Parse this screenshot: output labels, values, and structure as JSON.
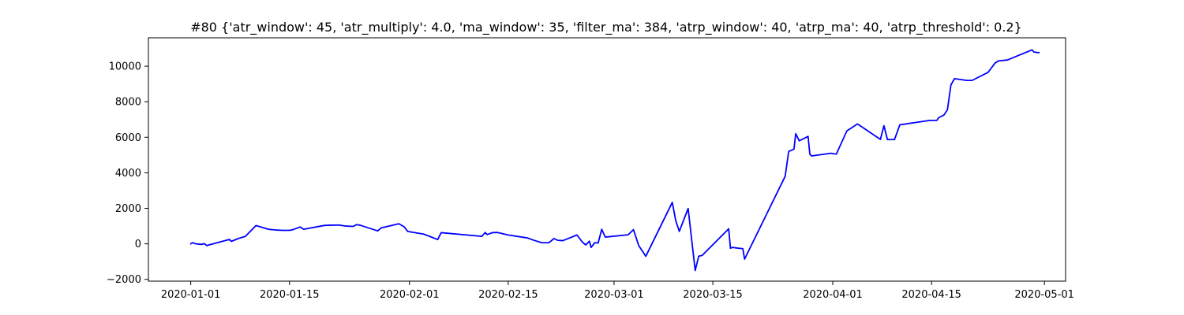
{
  "chart_data": {
    "type": "line",
    "title": "#80 {'atr_window': 45, 'atr_multiply': 4.0, 'ma_window': 35, 'filter_ma': 384, 'atrp_window': 40, 'atrp_ma': 40, 'atrp_threshold': 0.2}",
    "xlabel": "",
    "ylabel": "",
    "xlim": [
      "2019-12-26",
      "2020-05-04"
    ],
    "ylim": [
      -2100,
      11600
    ],
    "grid": false,
    "line_color": "#0000ff",
    "x_ticks": [
      {
        "date": "2020-01-01",
        "label": "2020-01-01"
      },
      {
        "date": "2020-01-15",
        "label": "2020-01-15"
      },
      {
        "date": "2020-02-01",
        "label": "2020-02-01"
      },
      {
        "date": "2020-02-15",
        "label": "2020-02-15"
      },
      {
        "date": "2020-03-01",
        "label": "2020-03-01"
      },
      {
        "date": "2020-03-15",
        "label": "2020-03-15"
      },
      {
        "date": "2020-04-01",
        "label": "2020-04-01"
      },
      {
        "date": "2020-04-15",
        "label": "2020-04-15"
      },
      {
        "date": "2020-05-01",
        "label": "2020-05-01"
      }
    ],
    "y_ticks": [
      {
        "value": -2000,
        "label": "−2000"
      },
      {
        "value": 0,
        "label": "0"
      },
      {
        "value": 2000,
        "label": "2000"
      },
      {
        "value": 4000,
        "label": "4000"
      },
      {
        "value": 6000,
        "label": "6000"
      },
      {
        "value": 8000,
        "label": "8000"
      },
      {
        "value": 10000,
        "label": "10000"
      }
    ],
    "series": [
      {
        "x": [
          "2020-01-01 00:00",
          "2020-01-01 06:00",
          "2020-01-01 18:00",
          "2020-01-02 12:00",
          "2020-01-02 23:00",
          "2020-01-03 06:00",
          "2020-01-03 14:00",
          "2020-01-06 12:00",
          "2020-01-06 18:00",
          "2020-01-07 18:00",
          "2020-01-08 18:00",
          "2020-01-10 06:00",
          "2020-01-12 00:00",
          "2020-01-13 00:00",
          "2020-01-14 00:00",
          "2020-01-15 00:00",
          "2020-01-15 12:00",
          "2020-01-16 12:00",
          "2020-01-17 00:00",
          "2020-01-20 00:00",
          "2020-01-21 00:00",
          "2020-01-22 00:00",
          "2020-01-23 00:00",
          "2020-01-24 00:00",
          "2020-01-24 12:00",
          "2020-01-25 00:00",
          "2020-01-27 12:00",
          "2020-01-28 00:00",
          "2020-01-30 12:00",
          "2020-01-31 06:00",
          "2020-01-31 18:00",
          "2020-02-03 00:00",
          "2020-02-04 00:00",
          "2020-02-05 00:00",
          "2020-02-05 12:00",
          "2020-02-11 06:00",
          "2020-02-11 18:00",
          "2020-02-12 00:00",
          "2020-02-12 18:00",
          "2020-02-13 12:00",
          "2020-02-15 00:00",
          "2020-02-17 18:00",
          "2020-02-18 12:00",
          "2020-02-19 18:00",
          "2020-02-20 18:00",
          "2020-02-21 12:00",
          "2020-02-22 00:00",
          "2020-02-22 18:00",
          "2020-02-24 18:00",
          "2020-02-25 12:00",
          "2020-02-26 00:00",
          "2020-02-26 12:00",
          "2020-02-26 18:00",
          "2020-02-27 06:00",
          "2020-02-27 18:00",
          "2020-02-28 06:00",
          "2020-02-28 18:00",
          "2020-03-03 00:00",
          "2020-03-03 18:00",
          "2020-03-04 12:00",
          "2020-03-05 12:00",
          "2020-03-09 06:00",
          "2020-03-09 18:00",
          "2020-03-10 06:00",
          "2020-03-11 12:00",
          "2020-03-12 12:00",
          "2020-03-13 00:00",
          "2020-03-13 12:00",
          "2020-03-17 06:00",
          "2020-03-17 12:00",
          "2020-03-17 18:00",
          "2020-03-18 12:00",
          "2020-03-19 06:00",
          "2020-03-19 12:00",
          "2020-03-25 06:00",
          "2020-03-25 18:00",
          "2020-03-26 12:00",
          "2020-03-26 18:00",
          "2020-03-27 06:00",
          "2020-03-28 12:00",
          "2020-03-28 18:00",
          "2020-03-29 00:00",
          "2020-03-31 18:00",
          "2020-04-01 12:00",
          "2020-04-03 00:00",
          "2020-04-04 12:00",
          "2020-04-07 18:00",
          "2020-04-08 06:00",
          "2020-04-08 18:00",
          "2020-04-09 18:00",
          "2020-04-10 12:00",
          "2020-04-14 18:00",
          "2020-04-15 18:00",
          "2020-04-16 00:00",
          "2020-04-16 18:00",
          "2020-04-17 06:00",
          "2020-04-17 18:00",
          "2020-04-18 06:00",
          "2020-04-20 00:00",
          "2020-04-20 18:00",
          "2020-04-23 00:00",
          "2020-04-24 00:00",
          "2020-04-24 12:00",
          "2020-04-25 18:00",
          "2020-04-29 06:00",
          "2020-04-29 12:00",
          "2020-04-30 00:00",
          "2020-04-30 06:00"
        ],
        "y": [
          0,
          60,
          0,
          -30,
          10,
          -100,
          -60,
          250,
          140,
          300,
          420,
          1030,
          820,
          780,
          760,
          760,
          800,
          950,
          820,
          1040,
          1050,
          1060,
          1000,
          980,
          1080,
          1050,
          730,
          900,
          1130,
          960,
          700,
          550,
          400,
          240,
          630,
          420,
          640,
          520,
          630,
          640,
          500,
          330,
          220,
          60,
          60,
          300,
          200,
          180,
          500,
          100,
          -60,
          150,
          -200,
          60,
          50,
          820,
          380,
          510,
          800,
          -100,
          -700,
          2330,
          1300,
          700,
          1990,
          -1500,
          -700,
          -650,
          850,
          -250,
          -200,
          -240,
          -270,
          -860,
          3800,
          5200,
          5330,
          6200,
          5800,
          6050,
          5050,
          4950,
          5100,
          5050,
          6360,
          6750,
          5880,
          6650,
          5870,
          5870,
          6700,
          6950,
          6950,
          7100,
          7250,
          7550,
          8950,
          9300,
          9200,
          9200,
          9650,
          10180,
          10300,
          10350,
          10920,
          10800,
          10770,
          10770
        ]
      }
    ]
  }
}
